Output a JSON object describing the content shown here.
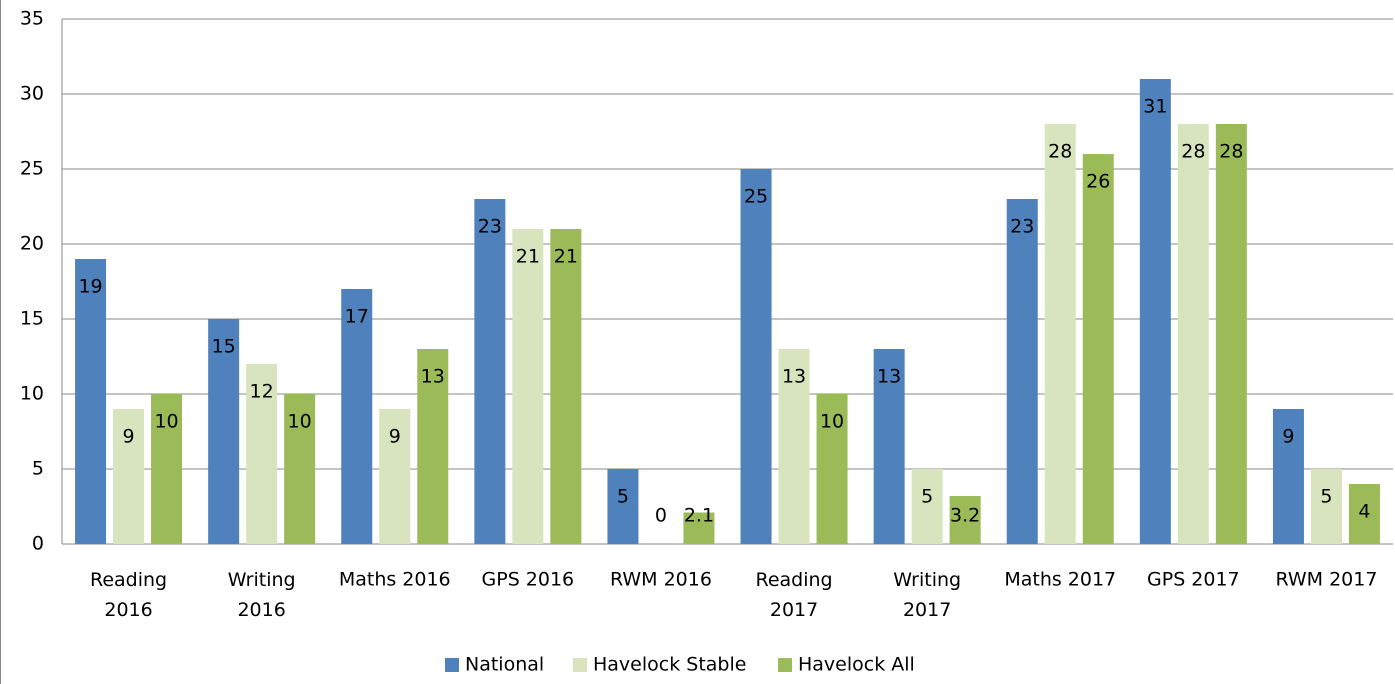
{
  "chart_data": {
    "type": "bar",
    "categories": [
      "Reading 2016",
      "Writing 2016",
      "Maths 2016",
      "GPS 2016",
      "RWM 2016",
      "Reading 2017",
      "Writing 2017",
      "Maths 2017",
      "GPS 2017",
      "RWM 2017"
    ],
    "series": [
      {
        "name": "National",
        "color": "#4f81bd",
        "values": [
          19,
          15,
          17,
          23,
          5,
          25,
          13,
          23,
          31,
          9
        ]
      },
      {
        "name": "Havelock Stable",
        "color": "#d7e4bd",
        "values": [
          9,
          12,
          9,
          21,
          0,
          13,
          5,
          28,
          28,
          5
        ]
      },
      {
        "name": "Havelock All",
        "color": "#9bbb59",
        "values": [
          10,
          10,
          13,
          21,
          2.1,
          10,
          3.2,
          26,
          28,
          4
        ]
      }
    ],
    "ylim": [
      0,
      35
    ],
    "yticks": [
      0,
      5,
      10,
      15,
      20,
      25,
      30,
      35
    ],
    "grid": true,
    "legend": "bottom"
  }
}
